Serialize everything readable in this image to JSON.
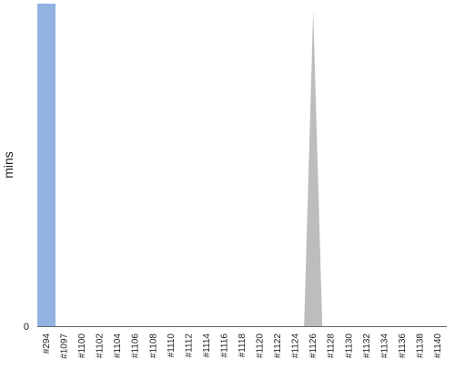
{
  "chart_data": {
    "type": "area",
    "title": "",
    "xlabel": "",
    "ylabel": "mins",
    "y_tick_labels": [
      "0"
    ],
    "categories": [
      "#294",
      "#1097",
      "#1100",
      "#1102",
      "#1104",
      "#1106",
      "#1108",
      "#1110",
      "#1112",
      "#1114",
      "#1116",
      "#1118",
      "#1120",
      "#1122",
      "#1124",
      "#1126",
      "#1128",
      "#1130",
      "#1132",
      "#1134",
      "#1136",
      "#1138",
      "#1140"
    ],
    "series": [
      {
        "color": "#bdbdbd",
        "values": [
          100,
          100,
          0,
          0,
          0,
          0,
          0,
          0,
          0,
          0,
          0,
          0,
          0,
          0,
          0,
          98,
          0,
          0,
          0,
          0,
          0,
          0,
          0
        ]
      },
      {
        "color": "#92b3e1",
        "values": [
          100,
          0,
          0,
          0,
          0,
          0,
          0,
          0,
          0,
          0,
          0,
          0,
          0,
          0,
          0,
          0,
          0,
          0,
          0,
          0,
          0,
          0,
          0
        ]
      }
    ],
    "ylim": [
      0,
      100
    ],
    "grid": false,
    "legend": "none"
  }
}
